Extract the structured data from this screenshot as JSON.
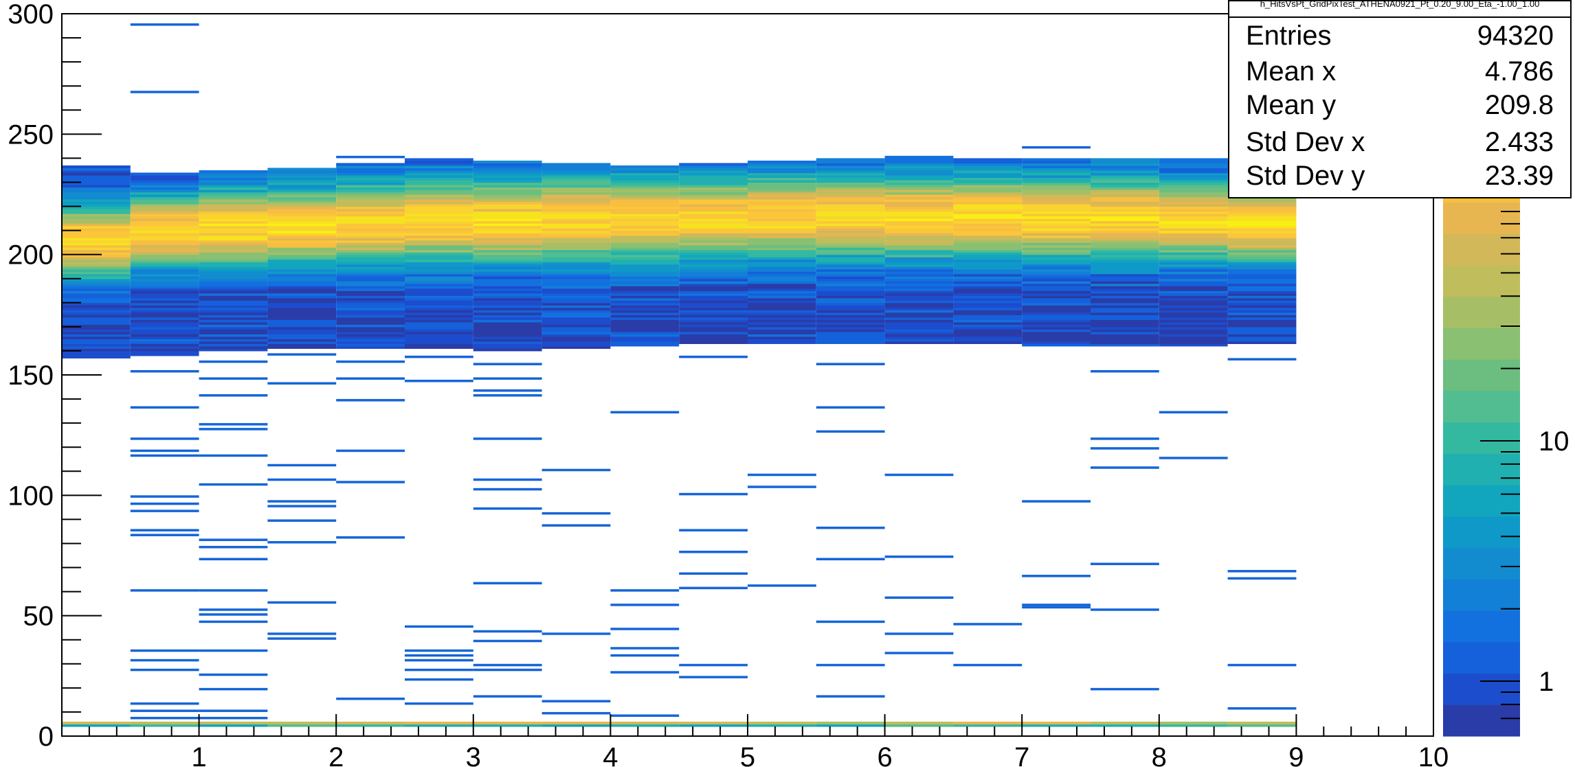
{
  "chart_data": {
    "type": "heatmap",
    "title": "h_HitsVsPt_GridPixTest_ATHENA0921_Pt_0.20_9.00_Eta_-1.00_1.00",
    "xlim": [
      0,
      10
    ],
    "ylim": [
      0,
      300
    ],
    "x_ticks": [
      "1",
      "2",
      "3",
      "4",
      "5",
      "6",
      "7",
      "8",
      "9",
      "10"
    ],
    "y_ticks": [
      "0",
      "50",
      "100",
      "150",
      "200",
      "250",
      "300"
    ],
    "z_scale": "log",
    "z_ticks": [
      "1",
      "10"
    ],
    "grid": false,
    "x_bin_edges": [
      0,
      0.5,
      1,
      1.5,
      2,
      2.5,
      3,
      3.5,
      4,
      4.5,
      5,
      5.5,
      6,
      6.5,
      7,
      7.5,
      8,
      8.5,
      9
    ],
    "dense_band": {
      "y_low_by_bin": [
        157,
        158,
        160,
        161,
        161,
        161,
        160,
        161,
        162,
        163,
        163,
        163,
        163,
        163,
        162,
        162,
        162,
        163
      ],
      "y_high_by_bin": [
        237,
        234,
        235,
        236,
        238,
        240,
        239,
        238,
        237,
        238,
        239,
        240,
        241,
        240,
        240,
        240,
        240,
        240
      ],
      "peak_by_bin": [
        206,
        210,
        211,
        212,
        213,
        214,
        214,
        215,
        215,
        215,
        216,
        216,
        216,
        216,
        215,
        215,
        214,
        213
      ],
      "peak_width": [
        14,
        14,
        15,
        15,
        16,
        16,
        16,
        16,
        16,
        16,
        16,
        16,
        16,
        16,
        16,
        16,
        15,
        15
      ]
    },
    "low_band": {
      "y_low": 4,
      "y_high": 6
    },
    "sparse_hits": [
      [
        0.5,
        1,
        295
      ],
      [
        0.5,
        1,
        267
      ],
      [
        0.5,
        1,
        233
      ],
      [
        0.5,
        1,
        151
      ],
      [
        0.5,
        1,
        136
      ],
      [
        0.5,
        1,
        123
      ],
      [
        0.5,
        1,
        118
      ],
      [
        0.5,
        1,
        116
      ],
      [
        0.5,
        1,
        99
      ],
      [
        0.5,
        1,
        96
      ],
      [
        0.5,
        1,
        93
      ],
      [
        0.5,
        1,
        85
      ],
      [
        0.5,
        1,
        83
      ],
      [
        0.5,
        1,
        60
      ],
      [
        0.5,
        1,
        35
      ],
      [
        0.5,
        1,
        31
      ],
      [
        0.5,
        1,
        27
      ],
      [
        0.5,
        1,
        13
      ],
      [
        0.5,
        1,
        10
      ],
      [
        0.5,
        1,
        7
      ],
      [
        1,
        1.5,
        155
      ],
      [
        1,
        1.5,
        148
      ],
      [
        1,
        1.5,
        141
      ],
      [
        1,
        1.5,
        129
      ],
      [
        1,
        1.5,
        127
      ],
      [
        1,
        1.5,
        116
      ],
      [
        1,
        1.5,
        104
      ],
      [
        1,
        1.5,
        81
      ],
      [
        1,
        1.5,
        78
      ],
      [
        1,
        1.5,
        73
      ],
      [
        1,
        1.5,
        60
      ],
      [
        1,
        1.5,
        52
      ],
      [
        1,
        1.5,
        50
      ],
      [
        1,
        1.5,
        47
      ],
      [
        1,
        1.5,
        35
      ],
      [
        1,
        1.5,
        25
      ],
      [
        1,
        1.5,
        19
      ],
      [
        1,
        1.5,
        10
      ],
      [
        1,
        1.5,
        7
      ],
      [
        1.5,
        2,
        158
      ],
      [
        1.5,
        2,
        146
      ],
      [
        1.5,
        2,
        112
      ],
      [
        1.5,
        2,
        106
      ],
      [
        1.5,
        2,
        97
      ],
      [
        1.5,
        2,
        95
      ],
      [
        1.5,
        2,
        89
      ],
      [
        1.5,
        2,
        80
      ],
      [
        1.5,
        2,
        55
      ],
      [
        1.5,
        2,
        42
      ],
      [
        1.5,
        2,
        40
      ],
      [
        2,
        2.5,
        240
      ],
      [
        2,
        2.5,
        155
      ],
      [
        2,
        2.5,
        148
      ],
      [
        2,
        2.5,
        139
      ],
      [
        2,
        2.5,
        118
      ],
      [
        2,
        2.5,
        105
      ],
      [
        2,
        2.5,
        82
      ],
      [
        2,
        2.5,
        15
      ],
      [
        2.5,
        3,
        157
      ],
      [
        2.5,
        3,
        147
      ],
      [
        2.5,
        3,
        45
      ],
      [
        2.5,
        3,
        35
      ],
      [
        2.5,
        3,
        33
      ],
      [
        2.5,
        3,
        31
      ],
      [
        2.5,
        3,
        27
      ],
      [
        2.5,
        3,
        23
      ],
      [
        2.5,
        3,
        13
      ],
      [
        3,
        3.5,
        154
      ],
      [
        3,
        3.5,
        148
      ],
      [
        3,
        3.5,
        143
      ],
      [
        3,
        3.5,
        141
      ],
      [
        3,
        3.5,
        123
      ],
      [
        3,
        3.5,
        106
      ],
      [
        3,
        3.5,
        102
      ],
      [
        3,
        3.5,
        94
      ],
      [
        3,
        3.5,
        63
      ],
      [
        3,
        3.5,
        43
      ],
      [
        3,
        3.5,
        39
      ],
      [
        3,
        3.5,
        29
      ],
      [
        3,
        3.5,
        27
      ],
      [
        3,
        3.5,
        16
      ],
      [
        3.5,
        4,
        110
      ],
      [
        3.5,
        4,
        92
      ],
      [
        3.5,
        4,
        87
      ],
      [
        3.5,
        4,
        42
      ],
      [
        3.5,
        4,
        14
      ],
      [
        3.5,
        4,
        9
      ],
      [
        4,
        4.5,
        134
      ],
      [
        4,
        4.5,
        60
      ],
      [
        4,
        4.5,
        54
      ],
      [
        4,
        4.5,
        44
      ],
      [
        4,
        4.5,
        36
      ],
      [
        4,
        4.5,
        33
      ],
      [
        4,
        4.5,
        26
      ],
      [
        4,
        4.5,
        8
      ],
      [
        4.5,
        5,
        157
      ],
      [
        4.5,
        5,
        100
      ],
      [
        4.5,
        5,
        85
      ],
      [
        4.5,
        5,
        76
      ],
      [
        4.5,
        5,
        67
      ],
      [
        4.5,
        5,
        61
      ],
      [
        4.5,
        5,
        29
      ],
      [
        4.5,
        5,
        24
      ],
      [
        5,
        5.5,
        108
      ],
      [
        5,
        5.5,
        103
      ],
      [
        5,
        5.5,
        62
      ],
      [
        5.5,
        6,
        154
      ],
      [
        5.5,
        6,
        136
      ],
      [
        5.5,
        6,
        126
      ],
      [
        5.5,
        6,
        86
      ],
      [
        5.5,
        6,
        73
      ],
      [
        5.5,
        6,
        47
      ],
      [
        5.5,
        6,
        29
      ],
      [
        5.5,
        6,
        16
      ],
      [
        6,
        6.5,
        108
      ],
      [
        6,
        6.5,
        74
      ],
      [
        6,
        6.5,
        57
      ],
      [
        6,
        6.5,
        42
      ],
      [
        6,
        6.5,
        34
      ],
      [
        6.5,
        7,
        46
      ],
      [
        6.5,
        7,
        29
      ],
      [
        7,
        7.5,
        244
      ],
      [
        7,
        7.5,
        97
      ],
      [
        7,
        7.5,
        66
      ],
      [
        7,
        7.5,
        54
      ],
      [
        7,
        7.5,
        53
      ],
      [
        7.5,
        8,
        151
      ],
      [
        7.5,
        8,
        123
      ],
      [
        7.5,
        8,
        119
      ],
      [
        7.5,
        8,
        111
      ],
      [
        7.5,
        8,
        71
      ],
      [
        7.5,
        8,
        52
      ],
      [
        7.5,
        8,
        19
      ],
      [
        8,
        8.5,
        134
      ],
      [
        8,
        8.5,
        115
      ],
      [
        8.5,
        9,
        156
      ],
      [
        8.5,
        9,
        68
      ],
      [
        8.5,
        9,
        65
      ],
      [
        8.5,
        9,
        29
      ],
      [
        8.5,
        9,
        11
      ]
    ],
    "colors": {
      "low": "#1565d8",
      "mid": "#1aa6c8",
      "high": "#ffff0a",
      "palette": [
        "#2a3ca8",
        "#1c4dcd",
        "#1560db",
        "#1271de",
        "#1280d6",
        "#128ccf",
        "#0f99c8",
        "#12a5be",
        "#20b0b0",
        "#34b9a1",
        "#52bd90",
        "#6bbe80",
        "#8ac072",
        "#a6bf66",
        "#c0bd5c",
        "#d2b858",
        "#e7b651",
        "#f7be41",
        "#fbc63a",
        "#f9d430",
        "#f7e21f",
        "#f9f012",
        "#ffff0a"
      ]
    }
  },
  "stats": {
    "title": "h_HitsVsPt_GridPixTest_ATHENA0921_Pt_0.20_9.00_Eta_-1.00_1.00",
    "rows": [
      {
        "label": "Entries",
        "value": "94320"
      },
      {
        "label": "Mean x",
        "value": "4.786"
      },
      {
        "label": "Mean y",
        "value": "209.8"
      },
      {
        "label": "Std Dev x",
        "value": "2.433"
      },
      {
        "label": "Std Dev y",
        "value": "23.39"
      }
    ]
  }
}
